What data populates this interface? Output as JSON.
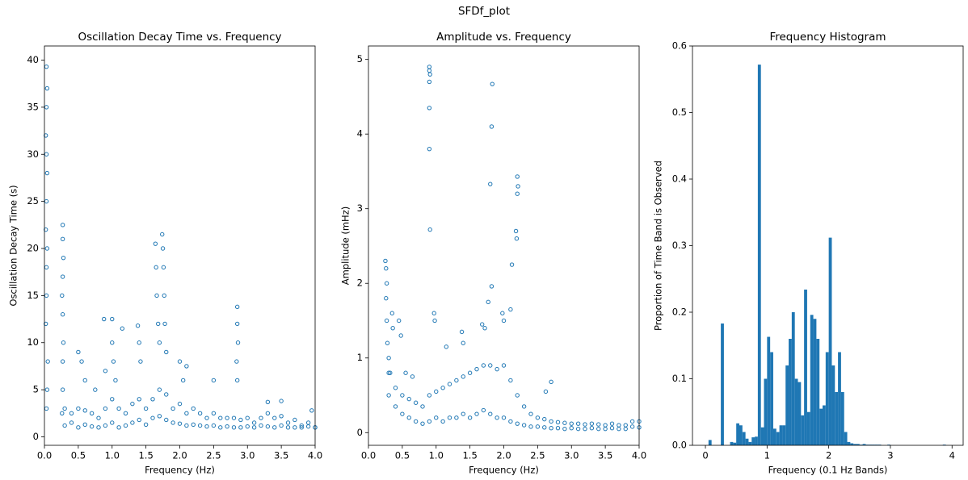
{
  "title": "SFDf_plot",
  "chart_data": [
    {
      "type": "scatter",
      "title": "Oscillation Decay Time vs. Frequency",
      "x_label": "Frequency (Hz)",
      "y_label": "Oscillation Decay Time (s)",
      "color": "#1f77b4",
      "xlim": [
        0,
        4
      ],
      "xticks": [
        {
          "value": 0,
          "label": "0.0"
        },
        0.5,
        {
          "value": 1,
          "label": "1.0"
        },
        1.5,
        {
          "value": 2,
          "label": "2.0"
        },
        2.5,
        {
          "value": 3,
          "label": "3.0"
        },
        3.5,
        {
          "value": 4,
          "label": "4.0"
        }
      ],
      "ylim": [
        -0.9,
        41.5
      ],
      "yticks": [
        0,
        5,
        10,
        15,
        20,
        25,
        30,
        35,
        40
      ],
      "x": [
        0.02,
        0.03,
        0.03,
        0.04,
        0.02,
        0.03,
        0.04,
        0.03,
        0.02,
        0.03,
        0.04,
        0.03,
        0.05,
        0.04,
        0.03,
        0.26,
        0.27,
        0.27,
        0.28,
        0.27,
        0.26,
        0.27,
        0.28,
        0.27,
        0.27,
        0.88,
        0.9,
        1.0,
        1.0,
        1.02,
        1.05,
        1.15,
        1.38,
        1.4,
        1.42,
        1.64,
        1.65,
        1.66,
        1.68,
        1.7,
        1.74,
        1.75,
        1.76,
        1.77,
        1.78,
        1.8,
        2.0,
        2.05,
        2.1,
        2.5,
        2.85,
        2.85,
        2.86,
        2.84,
        2.85,
        3.3,
        3.5,
        3.95,
        0.5,
        0.55,
        0.6,
        0.75,
        0.3,
        0.4,
        0.5,
        0.6,
        0.7,
        0.8,
        0.9,
        1.0,
        1.1,
        1.2,
        1.3,
        1.4,
        1.5,
        1.6,
        1.7,
        1.8,
        1.9,
        2.0,
        2.1,
        2.2,
        2.3,
        2.4,
        2.5,
        2.6,
        2.7,
        2.8,
        2.9,
        3.0,
        3.1,
        3.2,
        3.3,
        3.4,
        3.5,
        3.6,
        3.7,
        3.8,
        3.9,
        4.0,
        0.3,
        0.4,
        0.5,
        0.6,
        0.7,
        0.8,
        0.9,
        1.0,
        1.1,
        1.2,
        1.3,
        1.4,
        1.5,
        1.6,
        1.7,
        1.8,
        1.9,
        2.0,
        2.1,
        2.2,
        2.3,
        2.4,
        2.5,
        2.6,
        2.7,
        2.8,
        2.9,
        3.0,
        3.1,
        3.2,
        3.3,
        3.4,
        3.5,
        3.6,
        3.7,
        3.8,
        3.9,
        4.0
      ],
      "values": [
        12,
        15,
        18,
        20,
        22,
        25,
        28,
        30,
        32,
        35,
        37,
        39.3,
        8,
        5,
        3,
        2.5,
        5,
        8,
        10,
        13,
        15,
        17,
        19,
        21,
        22.5,
        12.5,
        7,
        12.5,
        10,
        8,
        6,
        11.5,
        11.8,
        10,
        8,
        20.5,
        18,
        15,
        12,
        10,
        21.5,
        20,
        18,
        15,
        12,
        9,
        8,
        6,
        7.5,
        6,
        13.8,
        12,
        10,
        8,
        6,
        3.7,
        3.8,
        2.8,
        9,
        8,
        6,
        5,
        3,
        2.5,
        3,
        2.8,
        2.5,
        2,
        3,
        4,
        3,
        2.5,
        3.5,
        4,
        3,
        4,
        5,
        4.5,
        3,
        3.5,
        2.5,
        3,
        2.5,
        2,
        2.5,
        2,
        2,
        2,
        1.8,
        2,
        1.5,
        2,
        2.5,
        2,
        2.2,
        1.5,
        1.8,
        1.2,
        1.5,
        1,
        1.2,
        1.5,
        1,
        1.3,
        1.1,
        1,
        1.2,
        1.5,
        1,
        1.2,
        1.5,
        1.8,
        1.3,
        2,
        2.2,
        1.8,
        1.5,
        1.4,
        1.2,
        1.3,
        1.2,
        1.1,
        1.2,
        1,
        1.1,
        1,
        1,
        1.1,
        1,
        1.2,
        1.1,
        1,
        1.2,
        1,
        1,
        1,
        1.1,
        1
      ]
    },
    {
      "type": "scatter",
      "title": "Amplitude vs. Frequency",
      "x_label": "Frequency (Hz)",
      "y_label": "Amplitude (mHz)",
      "color": "#1f77b4",
      "xlim": [
        0,
        4
      ],
      "xticks": [
        {
          "value": 0,
          "label": "0.0"
        },
        0.5,
        {
          "value": 1,
          "label": "1.0"
        },
        1.5,
        {
          "value": 2,
          "label": "2.0"
        },
        2.5,
        {
          "value": 3,
          "label": "3.0"
        },
        3.5,
        {
          "value": 4,
          "label": "4.0"
        }
      ],
      "ylim": [
        -0.17,
        5.18
      ],
      "yticks": [
        0,
        1,
        2,
        3,
        4,
        5
      ],
      "x": [
        0.25,
        0.26,
        0.27,
        0.26,
        0.27,
        0.28,
        0.3,
        0.32,
        0.35,
        0.36,
        0.9,
        0.9,
        0.91,
        0.9,
        0.9,
        0.9,
        0.91,
        0.97,
        0.98,
        1.83,
        1.82,
        1.8,
        1.82,
        2.2,
        2.21,
        2.2,
        2.18,
        2.19,
        2.12,
        2.1,
        1.15,
        1.38,
        1.4,
        1.68,
        1.72,
        1.77,
        1.98,
        2.0,
        2.7,
        2.62,
        0.45,
        0.48,
        0.55,
        0.65,
        0.3,
        0.4,
        0.5,
        0.6,
        0.7,
        0.8,
        0.9,
        1.0,
        1.1,
        1.2,
        1.3,
        1.4,
        1.5,
        1.6,
        1.7,
        1.8,
        1.9,
        2.0,
        2.1,
        2.2,
        2.3,
        2.4,
        2.5,
        2.6,
        2.7,
        2.8,
        2.9,
        3.0,
        3.1,
        3.2,
        3.3,
        3.4,
        3.5,
        3.6,
        3.7,
        3.8,
        3.9,
        4.0,
        0.3,
        0.4,
        0.5,
        0.6,
        0.7,
        0.8,
        0.9,
        1.0,
        1.1,
        1.2,
        1.3,
        1.4,
        1.5,
        1.6,
        1.7,
        1.8,
        1.9,
        2.0,
        2.1,
        2.2,
        2.3,
        2.4,
        2.5,
        2.6,
        2.7,
        2.8,
        2.9,
        3.0,
        3.1,
        3.2,
        3.3,
        3.4,
        3.5,
        3.6,
        3.7,
        3.8,
        3.9,
        4.0
      ],
      "values": [
        2.3,
        2.2,
        2.0,
        1.8,
        1.5,
        1.2,
        1.0,
        0.8,
        1.6,
        1.4,
        4.9,
        4.85,
        4.8,
        4.7,
        4.35,
        3.8,
        2.72,
        1.6,
        1.5,
        4.67,
        4.1,
        3.33,
        1.96,
        3.43,
        3.3,
        3.2,
        2.7,
        2.6,
        2.25,
        1.65,
        1.15,
        1.35,
        1.2,
        1.45,
        1.4,
        1.75,
        1.6,
        1.5,
        0.68,
        0.55,
        1.5,
        1.3,
        0.8,
        0.75,
        0.8,
        0.6,
        0.5,
        0.45,
        0.4,
        0.35,
        0.5,
        0.55,
        0.6,
        0.65,
        0.7,
        0.75,
        0.8,
        0.85,
        0.9,
        0.9,
        0.85,
        0.9,
        0.7,
        0.5,
        0.35,
        0.25,
        0.2,
        0.18,
        0.15,
        0.14,
        0.13,
        0.12,
        0.12,
        0.11,
        0.12,
        0.11,
        0.1,
        0.12,
        0.1,
        0.1,
        0.15,
        0.15,
        0.5,
        0.35,
        0.25,
        0.2,
        0.15,
        0.12,
        0.15,
        0.2,
        0.15,
        0.2,
        0.2,
        0.25,
        0.2,
        0.25,
        0.3,
        0.25,
        0.2,
        0.2,
        0.15,
        0.12,
        0.1,
        0.08,
        0.08,
        0.07,
        0.06,
        0.06,
        0.05,
        0.06,
        0.05,
        0.05,
        0.06,
        0.05,
        0.05,
        0.06,
        0.05,
        0.05,
        0.08,
        0.07
      ]
    },
    {
      "type": "histogram",
      "title": "Frequency Histogram",
      "x_label": "Frequency (0.1 Hz Bands)",
      "y_label": "Proportion of Time Band is Observed",
      "color": "#1f77b4",
      "xlim": [
        -0.21,
        4.18
      ],
      "xticks": [
        0,
        1,
        2,
        3,
        4
      ],
      "ylim": [
        0,
        0.6
      ],
      "yticks": [
        {
          "value": 0,
          "label": "0.0"
        },
        0.1,
        0.2,
        0.3,
        0.4,
        0.5,
        0.6
      ],
      "bins": [
        0,
        0.05,
        0.1,
        0.15,
        0.2,
        0.25,
        0.3,
        0.35,
        0.4,
        0.45,
        0.5,
        0.55,
        0.6,
        0.65,
        0.7,
        0.75,
        0.8,
        0.85,
        0.9,
        0.95,
        1,
        1.05,
        1.1,
        1.15,
        1.2,
        1.25,
        1.3,
        1.35,
        1.4,
        1.45,
        1.5,
        1.55,
        1.6,
        1.65,
        1.7,
        1.75,
        1.8,
        1.85,
        1.9,
        1.95,
        2,
        2.05,
        2.1,
        2.15,
        2.2,
        2.25,
        2.3,
        2.35,
        2.4,
        2.45,
        2.5,
        2.55,
        2.6,
        2.65,
        2.7,
        2.75,
        2.8,
        2.85,
        2.9,
        2.95,
        3,
        3.05,
        3.1,
        3.15,
        3.2,
        3.25,
        3.3,
        3.35,
        3.4,
        3.45,
        3.5,
        3.55,
        3.6,
        3.65,
        3.7,
        3.75,
        3.8,
        3.85,
        3.9,
        3.95,
        4
      ],
      "values": [
        0,
        0.008,
        0,
        0,
        0,
        0.183,
        0,
        0,
        0.005,
        0.004,
        0.033,
        0.03,
        0.02,
        0.01,
        0.005,
        0.012,
        0.013,
        0.572,
        0.027,
        0.1,
        0.163,
        0.14,
        0.025,
        0.02,
        0.03,
        0.03,
        0.12,
        0.16,
        0.2,
        0.1,
        0.095,
        0.045,
        0.234,
        0.05,
        0.196,
        0.19,
        0.16,
        0.055,
        0.06,
        0.14,
        0.312,
        0.12,
        0.08,
        0.14,
        0.08,
        0.02,
        0.005,
        0.003,
        0.002,
        0.002,
        0.001,
        0.002,
        0.001,
        0.001,
        0.001,
        0.001,
        0.001,
        0,
        0,
        0.001,
        0,
        0,
        0,
        0,
        0,
        0,
        0,
        0,
        0,
        0,
        0,
        0,
        0,
        0,
        0,
        0,
        0,
        0.001,
        0,
        0
      ]
    }
  ]
}
